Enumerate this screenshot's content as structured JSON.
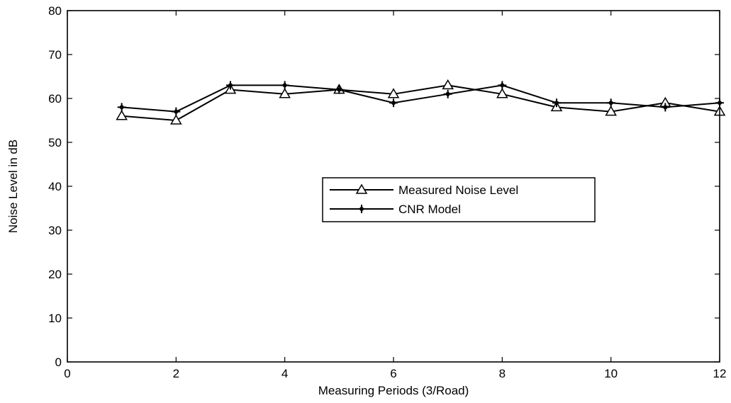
{
  "chart_data": {
    "type": "line",
    "title": "",
    "xlabel": "Measuring Periods (3/Road)",
    "ylabel": "Noise Level in dB",
    "xlim": [
      0,
      12
    ],
    "ylim": [
      0,
      80
    ],
    "xticks": [
      0,
      2,
      4,
      6,
      8,
      10,
      12
    ],
    "yticks": [
      0,
      10,
      20,
      30,
      40,
      50,
      60,
      70,
      80
    ],
    "grid": false,
    "legend_position": "center-right",
    "x": [
      1,
      2,
      3,
      4,
      5,
      6,
      7,
      8,
      9,
      10,
      11,
      12
    ],
    "series": [
      {
        "name": "Measured Noise Level",
        "marker": "triangle",
        "color": "#000000",
        "values": [
          56,
          55,
          62,
          61,
          62,
          61,
          63,
          61,
          58,
          57,
          59,
          57
        ]
      },
      {
        "name": "CNR Model",
        "marker": "plus-dot",
        "color": "#000000",
        "values": [
          58,
          57,
          63,
          63,
          62,
          59,
          61,
          63,
          59,
          59,
          58,
          59
        ]
      }
    ]
  }
}
